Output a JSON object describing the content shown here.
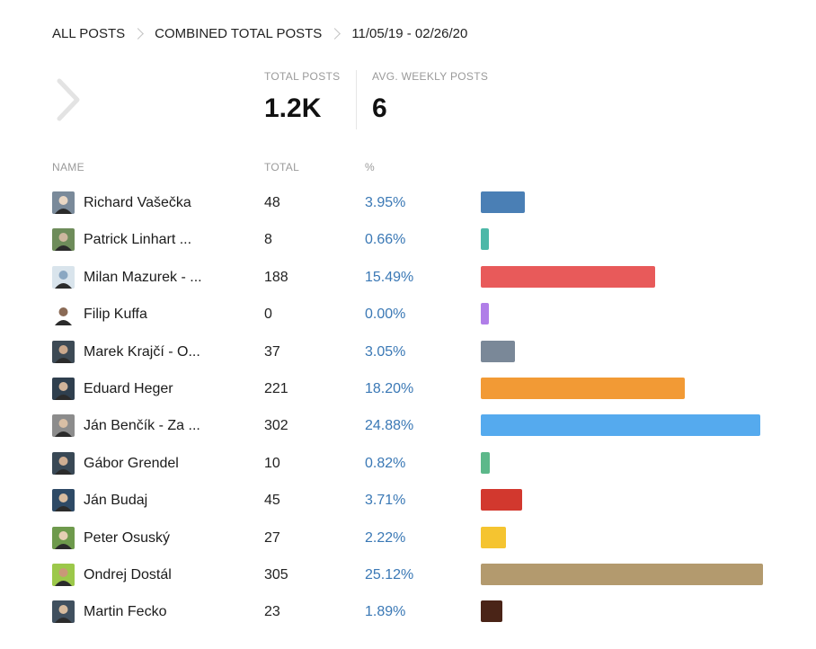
{
  "breadcrumb": {
    "items": [
      "ALL POSTS",
      "COMBINED TOTAL POSTS",
      "11/05/19 - 02/26/20"
    ]
  },
  "stats": {
    "total_posts_label": "TOTAL POSTS",
    "total_posts_value": "1.2K",
    "avg_weekly_label": "AVG. WEEKLY POSTS",
    "avg_weekly_value": "6"
  },
  "table": {
    "headers": {
      "name": "NAME",
      "total": "TOTAL",
      "percent": "%"
    },
    "rows": [
      {
        "name": "Richard Vašečka",
        "total": "48",
        "percent": "3.95%",
        "share": 3.95,
        "color": "#4a7fb5",
        "avatar_bg": "#7a8a9a",
        "avatar_fg": "#e9d7c4"
      },
      {
        "name": "Patrick Linhart ...",
        "total": "8",
        "percent": "0.66%",
        "share": 0.66,
        "color": "#4db8a8",
        "avatar_bg": "#6e8c5a",
        "avatar_fg": "#cdb79e"
      },
      {
        "name": "Milan Mazurek - ...",
        "total": "188",
        "percent": "15.49%",
        "share": 15.49,
        "color": "#e85a5a",
        "avatar_bg": "#d9e4ec",
        "avatar_fg": "#8aa7c2"
      },
      {
        "name": "Filip Kuffa",
        "total": "0",
        "percent": "0.00%",
        "share": 0.0,
        "color": "#b07ee8",
        "avatar_bg": "#ffffff",
        "avatar_fg": "#8a6a55"
      },
      {
        "name": "Marek Krajčí - O...",
        "total": "37",
        "percent": "3.05%",
        "share": 3.05,
        "color": "#7a8898",
        "avatar_bg": "#3d4a55",
        "avatar_fg": "#caa88c"
      },
      {
        "name": "Eduard Heger",
        "total": "221",
        "percent": "18.20%",
        "share": 18.2,
        "color": "#f29a35",
        "avatar_bg": "#2f3f4e",
        "avatar_fg": "#d1b49a"
      },
      {
        "name": "Ján Benčík - Za ...",
        "total": "302",
        "percent": "24.88%",
        "share": 24.88,
        "color": "#55aaee",
        "avatar_bg": "#8c8c8c",
        "avatar_fg": "#d9bfa5"
      },
      {
        "name": "Gábor Grendel",
        "total": "10",
        "percent": "0.82%",
        "share": 0.82,
        "color": "#5cb88a",
        "avatar_bg": "#394855",
        "avatar_fg": "#cfae92"
      },
      {
        "name": "Ján Budaj",
        "total": "45",
        "percent": "3.71%",
        "share": 3.71,
        "color": "#d2382e",
        "avatar_bg": "#2e4a66",
        "avatar_fg": "#d8bc9f"
      },
      {
        "name": "Peter Osuský",
        "total": "27",
        "percent": "2.22%",
        "share": 2.22,
        "color": "#f5c430",
        "avatar_bg": "#6e9a4c",
        "avatar_fg": "#e6cfb4"
      },
      {
        "name": "Ondrej Dostál",
        "total": "305",
        "percent": "25.12%",
        "share": 25.12,
        "color": "#b39a6e",
        "avatar_bg": "#9cc84a",
        "avatar_fg": "#c99878"
      },
      {
        "name": "Martin Fecko",
        "total": "23",
        "percent": "1.89%",
        "share": 1.89,
        "color": "#4a2417",
        "avatar_bg": "#40505f",
        "avatar_fg": "#d7bb9e"
      }
    ]
  }
}
